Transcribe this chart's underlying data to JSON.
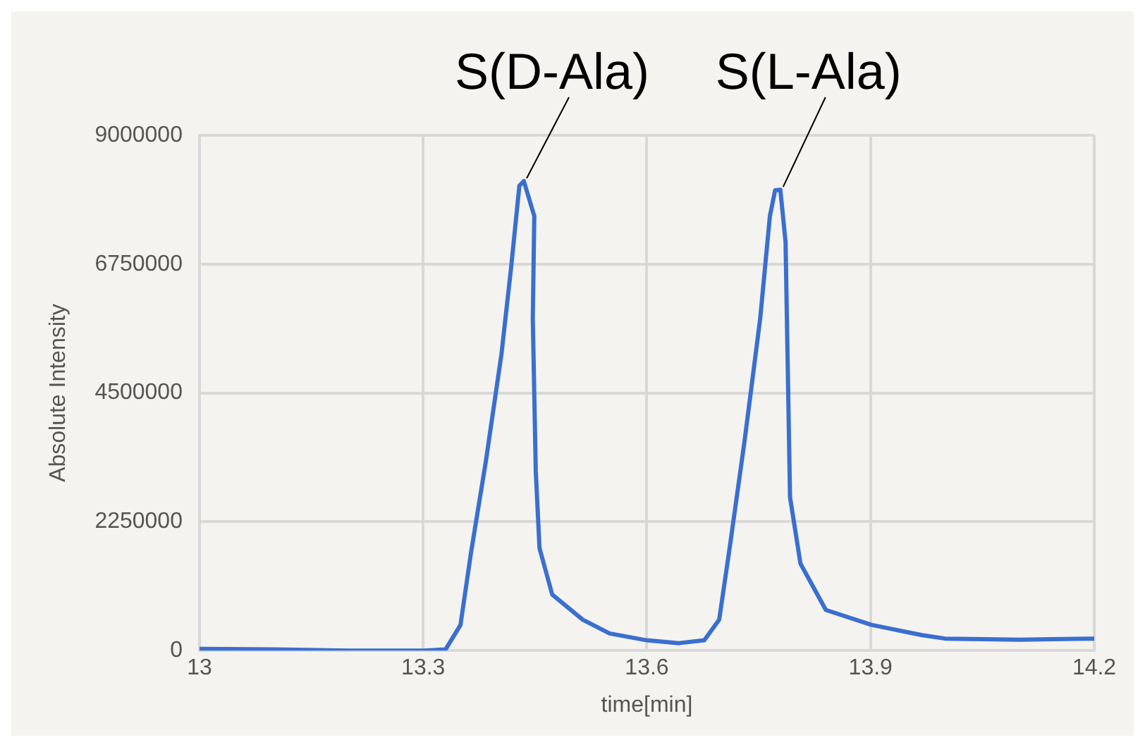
{
  "chart_data": {
    "type": "line",
    "xlabel": "time[min]",
    "ylabel": "Absolute Intensity",
    "x": [
      13,
      13.1,
      13.2,
      13.3,
      13.33,
      13.35,
      13.364,
      13.384,
      13.405,
      13.418,
      13.429,
      13.435,
      13.449,
      13.447,
      13.451,
      13.456,
      13.473,
      13.514,
      13.55,
      13.6,
      13.643,
      13.677,
      13.697,
      13.711,
      13.731,
      13.752,
      13.765,
      13.772,
      13.779,
      13.786,
      13.789,
      13.792,
      13.806,
      13.84,
      13.901,
      13.969,
      14.0,
      14.1,
      14.2
    ],
    "series": [
      {
        "color": "#3a6fcf",
        "values": [
          30000,
          20000,
          0,
          0,
          20000,
          447000,
          1700000,
          3300000,
          5180000,
          6700000,
          8120000,
          8200000,
          7590000,
          5800000,
          3130000,
          1790000,
          980000,
          540000,
          300000,
          180000,
          130000,
          180000,
          540000,
          1790000,
          3660000,
          5800000,
          7590000,
          8040000,
          8050000,
          7140000,
          4910000,
          2680000,
          1520000,
          710000,
          450000,
          270000,
          210000,
          190000,
          210000
        ]
      }
    ],
    "xlim": [
      13,
      14.2
    ],
    "xticks": [
      13,
      13.3,
      13.6,
      13.9,
      14.2
    ],
    "ylim": [
      0,
      9000000
    ],
    "yticks": [
      0,
      2250000,
      4500000,
      6750000,
      9000000
    ],
    "grid": true,
    "legend": false,
    "marker": "none",
    "line_style": "solid",
    "annotations": [
      {
        "text": "S(D-Ala)",
        "x": 13.435,
        "y": 8200000
      },
      {
        "text": "S(L-Ala)",
        "x": 13.779,
        "y": 8050000
      }
    ]
  }
}
